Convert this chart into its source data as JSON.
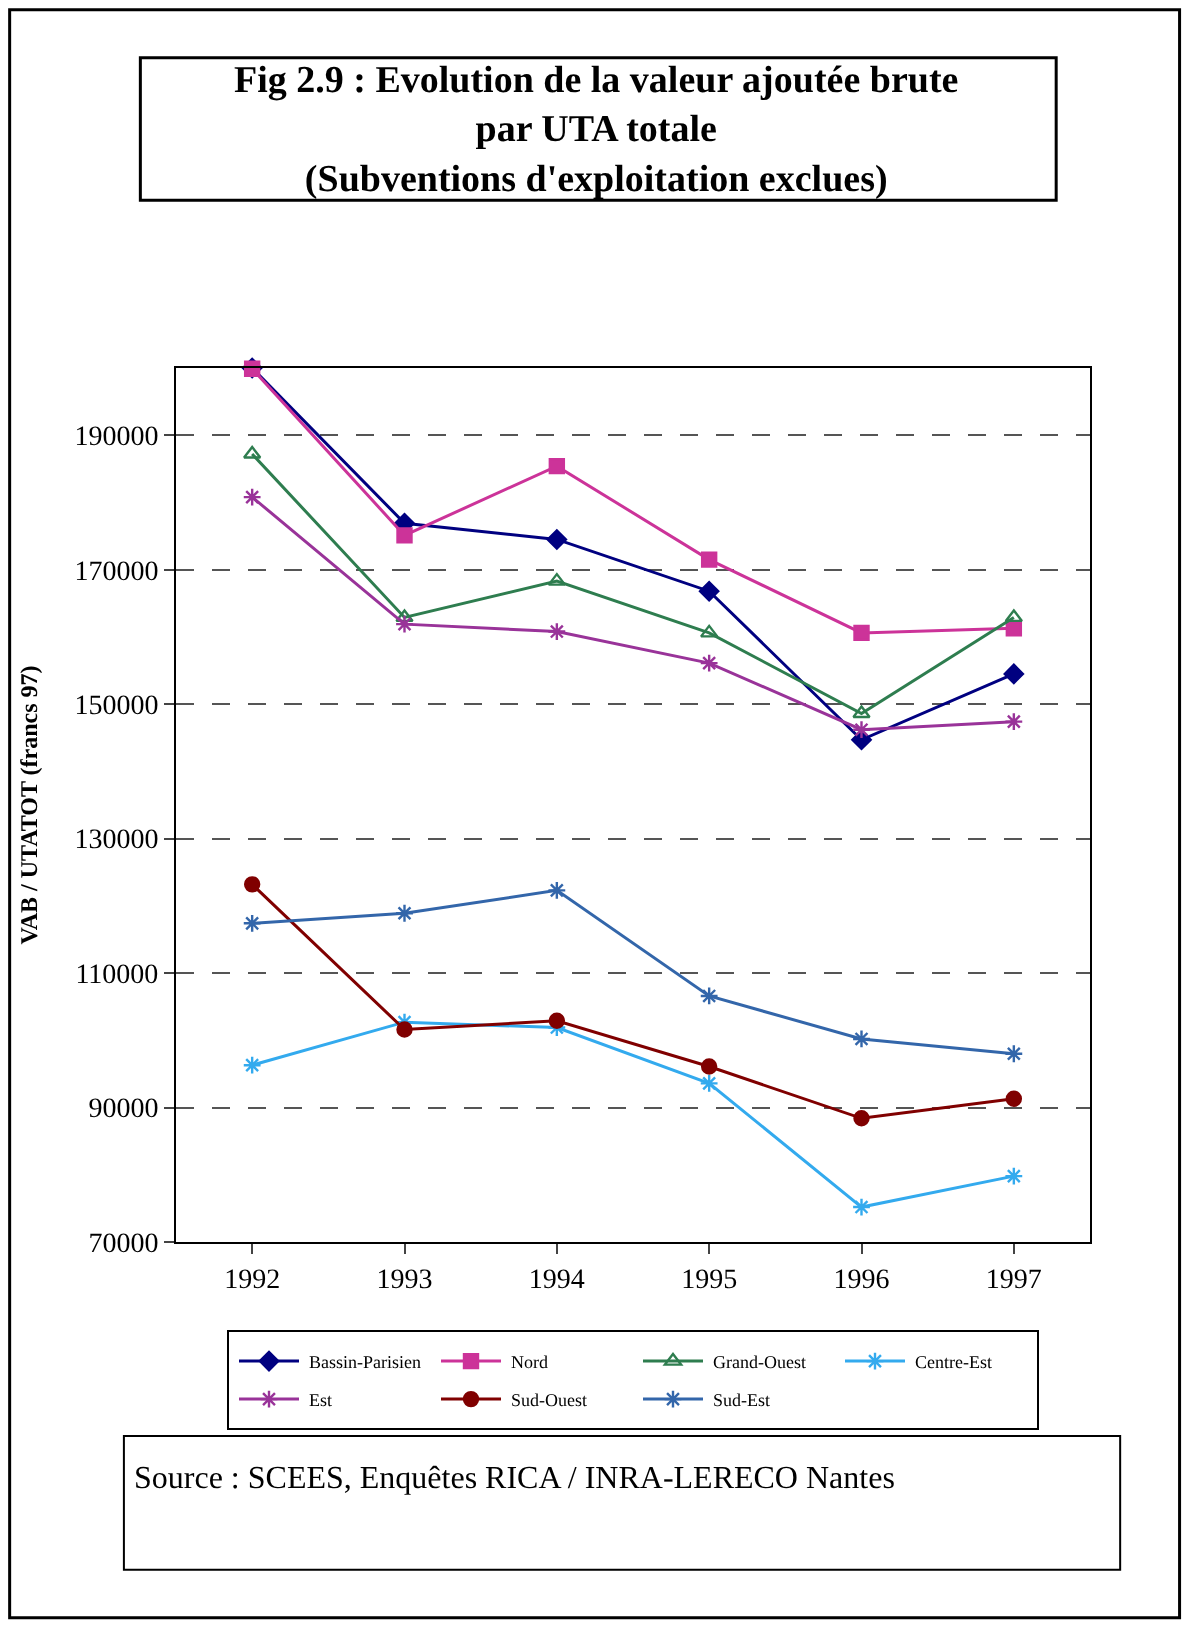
{
  "chart_data": {
    "type": "line",
    "title": "Fig 2.9 : Evolution de la valeur ajoutée brute\npar UTA totale\n(Subventions d'exploitation exclues)",
    "ylabel": "VAB / UTATOT (francs 97)",
    "categories": [
      "1992",
      "1993",
      "1994",
      "1995",
      "1996",
      "1997"
    ],
    "series": [
      {
        "name": "Bassin-Parisien",
        "color": "#000080",
        "marker": "diamond",
        "values": [
          200000,
          176900,
          174500,
          166800,
          144700,
          154500
        ]
      },
      {
        "name": "Nord",
        "color": "#cc3399",
        "marker": "square",
        "values": [
          199900,
          175100,
          185400,
          171500,
          160600,
          161300
        ]
      },
      {
        "name": "Grand-Ouest",
        "color": "#2e7d4f",
        "marker": "triangle",
        "values": [
          187200,
          162900,
          168300,
          160600,
          148600,
          162900
        ]
      },
      {
        "name": "Centre-Est",
        "color": "#33aaee",
        "marker": "cross",
        "values": [
          96300,
          102700,
          101900,
          93600,
          75200,
          79800
        ]
      },
      {
        "name": "Est",
        "color": "#993399",
        "marker": "cross",
        "values": [
          180800,
          161900,
          160800,
          156100,
          146200,
          147400
        ]
      },
      {
        "name": "Sud-Ouest",
        "color": "#800000",
        "marker": "circle",
        "values": [
          123200,
          101600,
          102900,
          96100,
          88400,
          91300
        ]
      },
      {
        "name": "Sud-Est",
        "color": "#3366aa",
        "marker": "cross",
        "values": [
          117400,
          118900,
          122300,
          106600,
          100200,
          98000
        ]
      }
    ],
    "ylim": [
      70000,
      200000
    ],
    "yticks": [
      70000,
      90000,
      110000,
      130000,
      150000,
      170000,
      190000
    ],
    "grid": "y",
    "legend": "bottom",
    "line_style": "solid",
    "annotations": [
      "Source : SCEES, Enquêtes RICA / INRA-LERECO Nantes"
    ]
  }
}
